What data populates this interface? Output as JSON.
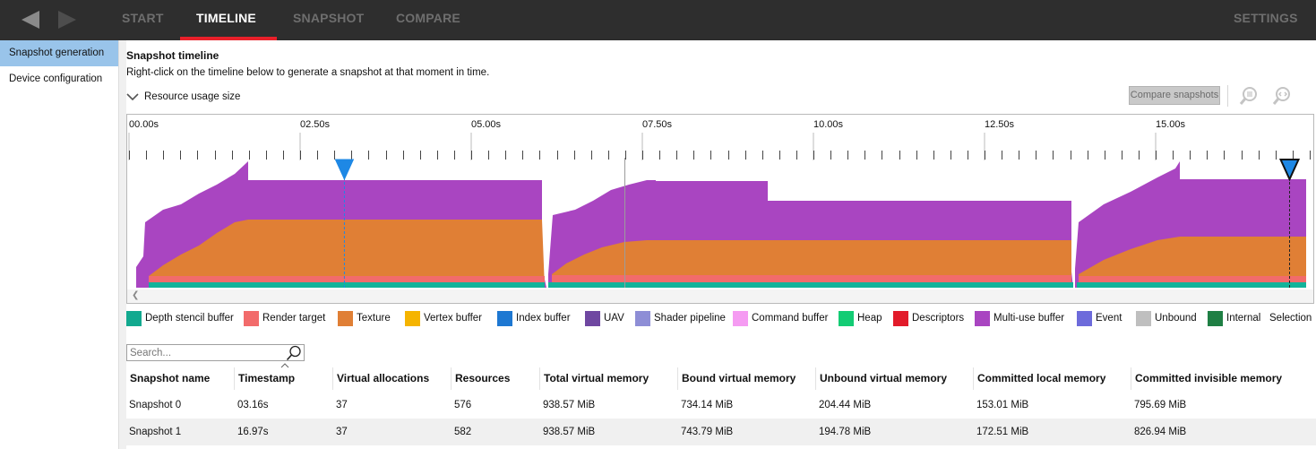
{
  "nav": {
    "tabs": [
      "START",
      "TIMELINE",
      "SNAPSHOT",
      "COMPARE"
    ],
    "active_tab": "TIMELINE",
    "settings_label": "SETTINGS",
    "back_icon": "back-arrow-icon",
    "forward_icon": "forward-arrow-icon"
  },
  "sidebar": {
    "items": [
      {
        "label": "Snapshot generation",
        "active": true
      },
      {
        "label": "Device configuration",
        "active": false
      }
    ]
  },
  "main": {
    "title": "Snapshot timeline",
    "description": "Right-click on the timeline below to generate a snapshot at that moment in time.",
    "resource_toggle_label": "Resource usage size",
    "compare_button_label": "Compare snapshots",
    "zoom_icons": [
      "zoom-to-selection-icon",
      "zoom-reset-icon"
    ]
  },
  "timeline": {
    "time_labels": [
      "00.00s",
      "02.50s",
      "05.00s",
      "07.50s",
      "10.00s",
      "12.50s",
      "15.00s"
    ],
    "snapshot_markers": [
      {
        "time": 3.16,
        "color": "#1e88e5"
      },
      {
        "time": 16.97,
        "color": "#1e88e5"
      }
    ],
    "colors": {
      "depth_stencil": "#12b39a",
      "render_target": "#f26b6b",
      "texture": "#e07f35",
      "multi_use": "#a945c1"
    }
  },
  "legend": [
    {
      "label": "Depth stencil buffer",
      "color": "#12a98f"
    },
    {
      "label": "Render target",
      "color": "#f26b6b"
    },
    {
      "label": "Texture",
      "color": "#e07f35"
    },
    {
      "label": "Vertex buffer",
      "color": "#f5b400"
    },
    {
      "label": "Index buffer",
      "color": "#1e78d2"
    },
    {
      "label": "UAV",
      "color": "#6f47a1"
    },
    {
      "label": "Shader pipeline",
      "color": "#8e8ed6"
    },
    {
      "label": "Command buffer",
      "color": "#f59bf2"
    },
    {
      "label": "Heap",
      "color": "#13cc74"
    },
    {
      "label": "Descriptors",
      "color": "#e21b2a"
    },
    {
      "label": "Multi-use buffer",
      "color": "#a945c1"
    },
    {
      "label": "Event",
      "color": "#6d6bdb"
    },
    {
      "label": "Unbound",
      "color": "#bfbfbf"
    },
    {
      "label": "Internal",
      "color": "#1f7f44"
    },
    {
      "label": "Selection",
      "color": ""
    }
  ],
  "search": {
    "placeholder": "Search..."
  },
  "table": {
    "columns": [
      "Snapshot name",
      "Timestamp",
      "Virtual allocations",
      "Resources",
      "Total virtual memory",
      "Bound virtual memory",
      "Unbound virtual memory",
      "Committed local memory",
      "Committed invisible memory"
    ],
    "rows": [
      [
        "Snapshot 0",
        "03.16s",
        "37",
        "576",
        "938.57 MiB",
        "734.14 MiB",
        "204.44 MiB",
        "153.01 MiB",
        "795.69 MiB"
      ],
      [
        "Snapshot 1",
        "16.97s",
        "37",
        "582",
        "938.57 MiB",
        "743.79 MiB",
        "194.78 MiB",
        "172.51 MiB",
        "826.94 MiB"
      ]
    ]
  }
}
